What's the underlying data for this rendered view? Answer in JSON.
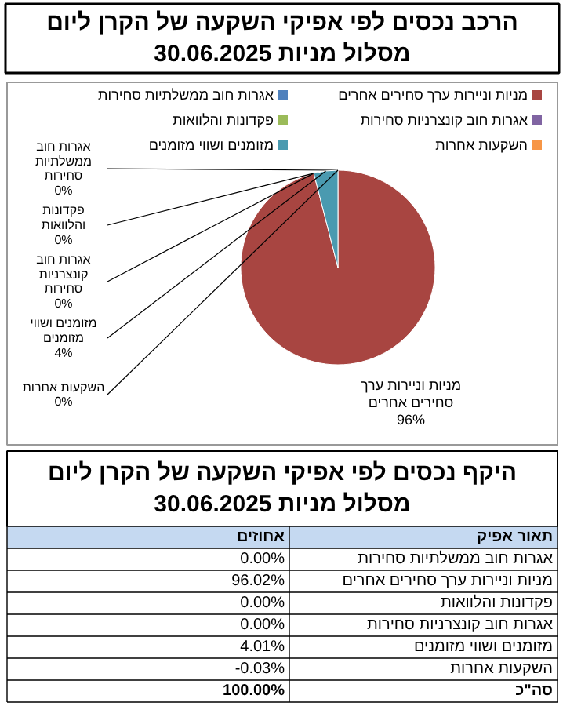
{
  "chart_data": [
    {
      "type": "pie",
      "title": "הרכב נכסים לפי אפיקי השקעה של הקרן ליום\n30.06.2025 מסלול מניות",
      "categories": [
        "אגרות חוב ממשלתיות סחירות",
        "מניות וניירות ערך סחירים אחרים",
        "פקדונות והלוואות",
        "אגרות חוב קונצרניות סחירות",
        "מזומנים ושווי מזומנים",
        "השקעות אחרות"
      ],
      "values": [
        0,
        96,
        0,
        0,
        4,
        0
      ],
      "value_labels": [
        "0%",
        "96%",
        "0%",
        "0%",
        "4%",
        "0%"
      ],
      "colors": [
        "#4f81bd",
        "#a84541",
        "#9bbb59",
        "#8064a2",
        "#4a9ab0",
        "#f79646"
      ],
      "legend": "top"
    },
    {
      "type": "other",
      "title": "היקף נכסים לפי אפיקי השקעה של הקרן ליום\n30.06.2025 מסלול מניות",
      "categories": [
        "אגרות חוב ממשלתיות סחירות",
        "מניות וניירות ערך סחירים אחרים",
        "פקדונות והלוואות",
        "אגרות חוב קונצרניות סחירות",
        "מזומנים ושווי מזומנים",
        "השקעות אחרות"
      ],
      "values": [
        0.0,
        96.02,
        0.0,
        0.0,
        4.01,
        -0.03
      ],
      "value_labels": [
        "0.00%",
        "96.02%",
        "0.00%",
        "0.00%",
        "4.01%",
        "-0.03%"
      ],
      "annotations": [
        "תאור אפיק",
        "אחוזים",
        "סה\"כ",
        "100.00%"
      ]
    }
  ]
}
